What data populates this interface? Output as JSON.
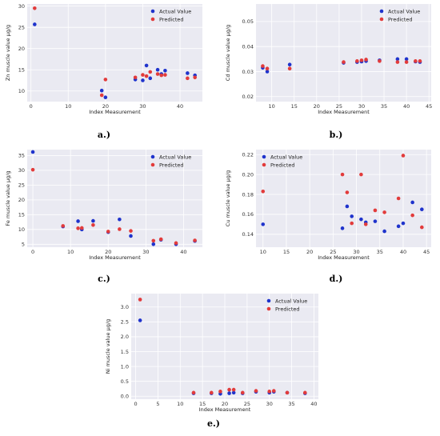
{
  "colors": {
    "actual": "#1f33cc",
    "predicted": "#e23b3b",
    "plot_bg": "#eaeaf2",
    "grid": "#ffffff"
  },
  "chart_data": [
    {
      "id": "a",
      "caption": "a.)",
      "type": "scatter",
      "xlabel": "Index Measurement",
      "ylabel": "Zn muscle value μg/g",
      "xlim": [
        -1,
        46
      ],
      "ylim": [
        7.5,
        30.5
      ],
      "xticks": [
        0,
        10,
        20,
        30,
        40
      ],
      "yticks": [
        10,
        15,
        20,
        25,
        30
      ],
      "legend_position": "top-right",
      "series": [
        {
          "name": "Actual Value",
          "points": [
            [
              1,
              25.7
            ],
            [
              19,
              10.1
            ],
            [
              20,
              8.5
            ],
            [
              28,
              12.7
            ],
            [
              30,
              12.5
            ],
            [
              31,
              16.0
            ],
            [
              32,
              13.0
            ],
            [
              34,
              15.0
            ],
            [
              35,
              14.0
            ],
            [
              36,
              14.8
            ],
            [
              42,
              14.2
            ],
            [
              44,
              13.7
            ]
          ]
        },
        {
          "name": "Predicted",
          "points": [
            [
              1,
              29.5
            ],
            [
              19,
              9.0
            ],
            [
              20,
              12.7
            ],
            [
              28,
              13.2
            ],
            [
              30,
              13.8
            ],
            [
              31,
              13.5
            ],
            [
              32,
              14.5
            ],
            [
              34,
              14.0
            ],
            [
              35,
              13.7
            ],
            [
              36,
              13.8
            ],
            [
              42,
              13.0
            ],
            [
              44,
              13.2
            ]
          ]
        }
      ]
    },
    {
      "id": "b",
      "caption": "b.)",
      "type": "scatter",
      "xlabel": "Index Measurement",
      "ylabel": "Cd muscle value μg/g",
      "xlim": [
        6.5,
        45.5
      ],
      "ylim": [
        0.018,
        0.057
      ],
      "xticks": [
        10,
        15,
        20,
        25,
        30,
        35,
        40,
        45
      ],
      "yticks": [
        0.02,
        0.03,
        0.04,
        0.05
      ],
      "legend_position": "top-right",
      "series": [
        {
          "name": "Actual Value",
          "points": [
            [
              8,
              0.0315
            ],
            [
              9,
              0.03
            ],
            [
              14,
              0.0328
            ],
            [
              26,
              0.0335
            ],
            [
              29,
              0.0338
            ],
            [
              30,
              0.034
            ],
            [
              31,
              0.0342
            ],
            [
              34,
              0.0345
            ],
            [
              38,
              0.035
            ],
            [
              40,
              0.035
            ],
            [
              42,
              0.034
            ],
            [
              43,
              0.0338
            ]
          ]
        },
        {
          "name": "Predicted",
          "points": [
            [
              8,
              0.0322
            ],
            [
              9,
              0.0312
            ],
            [
              14,
              0.0312
            ],
            [
              26,
              0.0338
            ],
            [
              29,
              0.0342
            ],
            [
              30,
              0.0345
            ],
            [
              31,
              0.0348
            ],
            [
              34,
              0.0342
            ],
            [
              38,
              0.0338
            ],
            [
              40,
              0.0338
            ],
            [
              42,
              0.0342
            ],
            [
              43,
              0.0342
            ]
          ]
        }
      ]
    },
    {
      "id": "c",
      "caption": "c.)",
      "type": "scatter",
      "xlabel": "Index Measurement",
      "ylabel": "Fe muscle value μg/g",
      "xlim": [
        -1.5,
        45
      ],
      "ylim": [
        4,
        37
      ],
      "xticks": [
        0,
        10,
        20,
        30,
        40
      ],
      "yticks": [
        5,
        10,
        15,
        20,
        25,
        30,
        35
      ],
      "legend_position": "top-right",
      "series": [
        {
          "name": "Actual Value",
          "points": [
            [
              0,
              36.2
            ],
            [
              8,
              11.0
            ],
            [
              12,
              12.8
            ],
            [
              13,
              10.0
            ],
            [
              16,
              12.9
            ],
            [
              20,
              9.1
            ],
            [
              23,
              13.4
            ],
            [
              26,
              7.8
            ],
            [
              32,
              5.0
            ],
            [
              34,
              6.5
            ],
            [
              38,
              5.0
            ],
            [
              43,
              6.1
            ]
          ]
        },
        {
          "name": "Predicted",
          "points": [
            [
              0,
              30.2
            ],
            [
              8,
              11.2
            ],
            [
              12,
              10.4
            ],
            [
              13,
              10.5
            ],
            [
              16,
              11.5
            ],
            [
              20,
              9.3
            ],
            [
              23,
              10.1
            ],
            [
              26,
              9.5
            ],
            [
              32,
              6.2
            ],
            [
              34,
              6.7
            ],
            [
              38,
              5.4
            ],
            [
              43,
              6.3
            ]
          ]
        }
      ]
    },
    {
      "id": "d",
      "caption": "d.)",
      "type": "scatter",
      "xlabel": "Index Measurement",
      "ylabel": "Cu muscle value μg/g",
      "xlim": [
        8.5,
        46
      ],
      "ylim": [
        0.127,
        0.225
      ],
      "xticks": [
        10,
        15,
        20,
        25,
        30,
        35,
        40,
        45
      ],
      "yticks": [
        0.14,
        0.16,
        0.18,
        0.2,
        0.22
      ],
      "legend_position": "top-left",
      "series": [
        {
          "name": "Actual Value",
          "points": [
            [
              10,
              0.15
            ],
            [
              27,
              0.146
            ],
            [
              28,
              0.168
            ],
            [
              29,
              0.158
            ],
            [
              31,
              0.155
            ],
            [
              32,
              0.152
            ],
            [
              34,
              0.153
            ],
            [
              36,
              0.143
            ],
            [
              39,
              0.148
            ],
            [
              40,
              0.151
            ],
            [
              42,
              0.172
            ],
            [
              44,
              0.165
            ]
          ]
        },
        {
          "name": "Predicted",
          "points": [
            [
              10,
              0.183
            ],
            [
              27,
              0.2
            ],
            [
              28,
              0.182
            ],
            [
              29,
              0.151
            ],
            [
              31,
              0.2
            ],
            [
              32,
              0.15
            ],
            [
              34,
              0.164
            ],
            [
              36,
              0.162
            ],
            [
              39,
              0.176
            ],
            [
              40,
              0.219
            ],
            [
              42,
              0.159
            ],
            [
              44,
              0.147
            ]
          ]
        }
      ]
    },
    {
      "id": "e",
      "caption": "e.)",
      "type": "scatter",
      "xlabel": "Index Measurement",
      "ylabel": "Ni muscle value μg/g",
      "xlim": [
        -1,
        41
      ],
      "ylim": [
        -0.1,
        3.45
      ],
      "xticks": [
        0,
        5,
        10,
        15,
        20,
        25,
        30,
        35,
        40
      ],
      "yticks": [
        0.0,
        0.5,
        1.0,
        1.5,
        2.0,
        2.5,
        3.0
      ],
      "legend_position": "top-right",
      "series": [
        {
          "name": "Actual Value",
          "points": [
            [
              1,
              2.55
            ],
            [
              13,
              0.1
            ],
            [
              17,
              0.1
            ],
            [
              19,
              0.08
            ],
            [
              21,
              0.1
            ],
            [
              22,
              0.12
            ],
            [
              24,
              0.1
            ],
            [
              27,
              0.15
            ],
            [
              30,
              0.12
            ],
            [
              31,
              0.15
            ],
            [
              34,
              0.12
            ],
            [
              38,
              0.1
            ]
          ]
        },
        {
          "name": "Predicted",
          "points": [
            [
              1,
              3.25
            ],
            [
              13,
              0.12
            ],
            [
              17,
              0.12
            ],
            [
              19,
              0.16
            ],
            [
              21,
              0.22
            ],
            [
              22,
              0.22
            ],
            [
              24,
              0.12
            ],
            [
              27,
              0.18
            ],
            [
              30,
              0.16
            ],
            [
              31,
              0.18
            ],
            [
              34,
              0.12
            ],
            [
              38,
              0.12
            ]
          ]
        }
      ]
    }
  ]
}
